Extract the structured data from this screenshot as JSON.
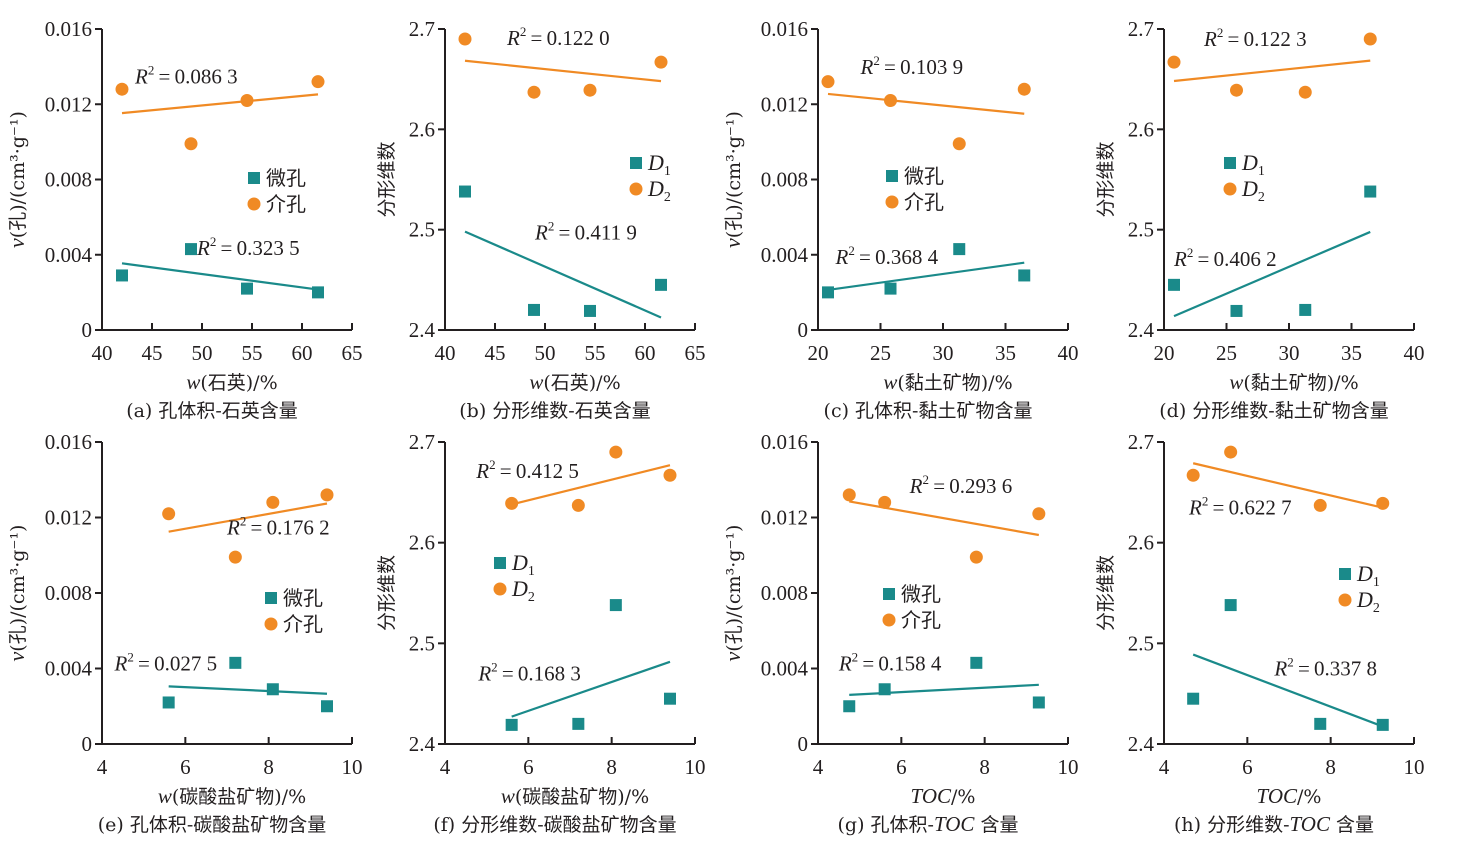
{
  "figure": {
    "colors": {
      "series1": "#1a8a8a",
      "series2": "#f08a24",
      "text": "#231f20"
    }
  },
  "chart_data": [
    {
      "id": "a",
      "type": "scatter",
      "caption": "(a) 孔体积-石英含量",
      "xlabel_var": "w",
      "xlabel_rest": "(石英)/%",
      "ylabel": "v(孔)/(cm³·g⁻¹)",
      "xlim": [
        40,
        65
      ],
      "xticks": [
        "40",
        "45",
        "50",
        "55",
        "60",
        "65"
      ],
      "xtick_values": [
        40,
        45,
        50,
        55,
        60,
        65
      ],
      "ylim": [
        0,
        0.016
      ],
      "yticks": [
        "0",
        "0.004",
        "0.008",
        "0.012",
        "0.016"
      ],
      "ytick_values": [
        0,
        0.004,
        0.008,
        0.012,
        0.016
      ],
      "legend": {
        "position": "center-right",
        "items": [
          "微孔",
          "介孔"
        ]
      },
      "series": [
        {
          "name": "微孔",
          "marker": "square",
          "x": [
            61.6,
            54.5,
            48.9,
            42.0
          ],
          "y": [
            0.002,
            0.0022,
            0.0043,
            0.0029
          ],
          "r2_label": "R²=0.323 5",
          "r2_value": "0.323 5",
          "r2_anchor": [
            49.5,
            0.004
          ]
        },
        {
          "name": "介孔",
          "marker": "circle",
          "x": [
            61.6,
            54.5,
            48.9,
            42.0
          ],
          "y": [
            0.0132,
            0.0122,
            0.0099,
            0.0128
          ],
          "r2_label": "R²=0.086 3",
          "r2_value": "0.086 3",
          "r2_anchor": [
            43.3,
            0.0131
          ]
        }
      ]
    },
    {
      "id": "b",
      "type": "scatter",
      "caption": "(b) 分形维数-石英含量",
      "xlabel_var": "w",
      "xlabel_rest": "(石英)/%",
      "ylabel": "分形维数",
      "xlim": [
        40,
        65
      ],
      "xticks": [
        "40",
        "45",
        "50",
        "55",
        "60",
        "65"
      ],
      "xtick_values": [
        40,
        45,
        50,
        55,
        60,
        65
      ],
      "ylim": [
        2.4,
        2.7
      ],
      "yticks": [
        "2.4",
        "2.5",
        "2.6",
        "2.7"
      ],
      "ytick_values": [
        2.4,
        2.5,
        2.6,
        2.7
      ],
      "legend": {
        "position": "center-right",
        "items": [
          "D1",
          "D2"
        ]
      },
      "series": [
        {
          "name": "D1",
          "marker": "square",
          "x": [
            61.6,
            54.5,
            48.9,
            42.0
          ],
          "y": [
            2.445,
            2.419,
            2.42,
            2.538
          ],
          "r2_label": "R²=0.411 9",
          "r2_value": "0.411 9",
          "r2_anchor": [
            49.0,
            2.49
          ]
        },
        {
          "name": "D2",
          "marker": "circle",
          "x": [
            61.6,
            54.5,
            48.9,
            42.0
          ],
          "y": [
            2.667,
            2.639,
            2.637,
            2.69
          ],
          "r2_label": "R²=0.122 0",
          "r2_value": "0.122 0",
          "r2_anchor": [
            46.2,
            2.684
          ]
        }
      ]
    },
    {
      "id": "c",
      "type": "scatter",
      "caption": "(c) 孔体积-黏土矿物含量",
      "xlabel_var": "w",
      "xlabel_rest": "(黏土矿物)/%",
      "ylabel": "v(孔)/(cm³·g⁻¹)",
      "xlim": [
        20,
        40
      ],
      "xticks": [
        "20",
        "25",
        "30",
        "35",
        "40"
      ],
      "xtick_values": [
        20,
        25,
        30,
        35,
        40
      ],
      "ylim": [
        0,
        0.016
      ],
      "yticks": [
        "0",
        "0.004",
        "0.008",
        "0.012",
        "0.016"
      ],
      "ytick_values": [
        0,
        0.004,
        0.008,
        0.012,
        0.016
      ],
      "legend": {
        "position": "center",
        "items": [
          "微孔",
          "介孔"
        ]
      },
      "series": [
        {
          "name": "微孔",
          "marker": "square",
          "x": [
            20.8,
            25.8,
            31.3,
            36.5
          ],
          "y": [
            0.002,
            0.0022,
            0.0043,
            0.0029
          ],
          "r2_label": "R²=0.368 4",
          "r2_value": "0.368 4",
          "r2_anchor": [
            21.4,
            0.0035
          ]
        },
        {
          "name": "介孔",
          "marker": "circle",
          "x": [
            20.8,
            25.8,
            31.3,
            36.5
          ],
          "y": [
            0.0132,
            0.0122,
            0.0099,
            0.0128
          ],
          "r2_label": "R²=0.103 9",
          "r2_value": "0.103 9",
          "r2_anchor": [
            23.4,
            0.0136
          ]
        }
      ]
    },
    {
      "id": "d",
      "type": "scatter",
      "caption": "(d) 分形维数-黏土矿物含量",
      "xlabel_var": "w",
      "xlabel_rest": "(黏土矿物)/%",
      "ylabel": "分形维数",
      "xlim": [
        20,
        40
      ],
      "xticks": [
        "20",
        "25",
        "30",
        "35",
        "40"
      ],
      "xtick_values": [
        20,
        25,
        30,
        35,
        40
      ],
      "ylim": [
        2.4,
        2.7
      ],
      "yticks": [
        "2.4",
        "2.5",
        "2.6",
        "2.7"
      ],
      "ytick_values": [
        2.4,
        2.5,
        2.6,
        2.7
      ],
      "legend": {
        "position": "center-left",
        "items": [
          "D1",
          "D2"
        ]
      },
      "series": [
        {
          "name": "D1",
          "marker": "square",
          "x": [
            20.8,
            25.8,
            31.3,
            36.5
          ],
          "y": [
            2.445,
            2.419,
            2.42,
            2.538
          ],
          "r2_label": "R²=0.406 2",
          "r2_value": "0.406 2",
          "r2_anchor": [
            20.8,
            2.464
          ]
        },
        {
          "name": "D2",
          "marker": "circle",
          "x": [
            20.8,
            25.8,
            31.3,
            36.5
          ],
          "y": [
            2.667,
            2.639,
            2.637,
            2.69
          ],
          "r2_label": "R²=0.122 3",
          "r2_value": "0.122 3",
          "r2_anchor": [
            23.2,
            2.683
          ]
        }
      ]
    },
    {
      "id": "e",
      "type": "scatter",
      "caption": "(e) 孔体积-碳酸盐矿物含量",
      "xlabel_var": "w",
      "xlabel_rest": "(碳酸盐矿物)/%",
      "ylabel": "v(孔)/(cm³·g⁻¹)",
      "xlim": [
        4,
        10
      ],
      "xticks": [
        "4",
        "6",
        "8",
        "10"
      ],
      "xtick_values": [
        4,
        6,
        8,
        10
      ],
      "ylim": [
        0,
        0.016
      ],
      "yticks": [
        "0",
        "0.004",
        "0.008",
        "0.012",
        "0.016"
      ],
      "ytick_values": [
        0,
        0.004,
        0.008,
        0.012,
        0.016
      ],
      "legend": {
        "position": "center-right",
        "items": [
          "微孔",
          "介孔"
        ]
      },
      "series": [
        {
          "name": "微孔",
          "marker": "square",
          "x": [
            9.4,
            5.6,
            7.2,
            8.1
          ],
          "y": [
            0.002,
            0.0022,
            0.0043,
            0.0029
          ],
          "r2_label": "R²=0.027 5",
          "r2_value": "0.027 5",
          "r2_anchor": [
            4.3,
            0.0039
          ]
        },
        {
          "name": "介孔",
          "marker": "circle",
          "x": [
            9.4,
            5.6,
            7.2,
            8.1
          ],
          "y": [
            0.0132,
            0.0122,
            0.0099,
            0.0128
          ],
          "r2_label": "R²=0.176 2",
          "r2_value": "0.176 2",
          "r2_anchor": [
            7.0,
            0.0111
          ]
        }
      ]
    },
    {
      "id": "f",
      "type": "scatter",
      "caption": "(f) 分形维数-碳酸盐矿物含量",
      "xlabel_var": "w",
      "xlabel_rest": "(碳酸盐矿物)/%",
      "ylabel": "分形维数",
      "xlim": [
        4,
        10
      ],
      "xticks": [
        "4",
        "6",
        "8",
        "10"
      ],
      "xtick_values": [
        4,
        6,
        8,
        10
      ],
      "ylim": [
        2.4,
        2.7
      ],
      "yticks": [
        "2.4",
        "2.5",
        "2.6",
        "2.7"
      ],
      "ytick_values": [
        2.4,
        2.5,
        2.6,
        2.7
      ],
      "legend": {
        "position": "center-left",
        "items": [
          "D1",
          "D2"
        ]
      },
      "series": [
        {
          "name": "D1",
          "marker": "square",
          "x": [
            9.4,
            5.6,
            7.2,
            8.1
          ],
          "y": [
            2.445,
            2.419,
            2.42,
            2.538
          ],
          "r2_label": "R²=0.168 3",
          "r2_value": "0.168 3",
          "r2_anchor": [
            4.8,
            2.463
          ]
        },
        {
          "name": "D2",
          "marker": "circle",
          "x": [
            9.4,
            5.6,
            7.2,
            8.1
          ],
          "y": [
            2.667,
            2.639,
            2.637,
            2.69
          ],
          "r2_label": "R²=0.412 5",
          "r2_value": "0.412 5",
          "r2_anchor": [
            4.75,
            2.664
          ]
        }
      ]
    },
    {
      "id": "g",
      "type": "scatter",
      "caption": "(g) 孔体积-TOC 含量",
      "xlabel_var": "TOC",
      "xlabel_rest": "/%",
      "ylabel": "v(孔)/(cm³·g⁻¹)",
      "xlim": [
        4,
        10
      ],
      "xticks": [
        "4",
        "6",
        "8",
        "10"
      ],
      "xtick_values": [
        4,
        6,
        8,
        10
      ],
      "ylim": [
        0,
        0.016
      ],
      "yticks": [
        "0",
        "0.004",
        "0.008",
        "0.012",
        "0.016"
      ],
      "ytick_values": [
        0,
        0.004,
        0.008,
        0.012,
        0.016
      ],
      "legend": {
        "position": "center",
        "items": [
          "微孔",
          "介孔"
        ]
      },
      "series": [
        {
          "name": "微孔",
          "marker": "square",
          "x": [
            4.75,
            9.3,
            7.8,
            5.6
          ],
          "y": [
            0.002,
            0.0022,
            0.0043,
            0.0029
          ],
          "r2_label": "R²=0.158 4",
          "r2_value": "0.158 4",
          "r2_anchor": [
            4.5,
            0.0039
          ]
        },
        {
          "name": "介孔",
          "marker": "circle",
          "x": [
            4.75,
            9.3,
            7.8,
            5.6
          ],
          "y": [
            0.0132,
            0.0122,
            0.0099,
            0.0128
          ],
          "r2_label": "R²=0.293 6",
          "r2_value": "0.293 6",
          "r2_anchor": [
            6.2,
            0.0133
          ]
        }
      ]
    },
    {
      "id": "h",
      "type": "scatter",
      "caption": "(h) 分形维数-TOC 含量",
      "xlabel_var": "TOC",
      "xlabel_rest": "/%",
      "ylabel": "分形维数",
      "xlim": [
        4,
        10
      ],
      "xticks": [
        "4",
        "6",
        "8",
        "10"
      ],
      "xtick_values": [
        4,
        6,
        8,
        10
      ],
      "ylim": [
        2.4,
        2.7
      ],
      "yticks": [
        "2.4",
        "2.5",
        "2.6",
        "2.7"
      ],
      "ytick_values": [
        2.4,
        2.5,
        2.6,
        2.7
      ],
      "legend": {
        "position": "center-right",
        "items": [
          "D1",
          "D2"
        ]
      },
      "series": [
        {
          "name": "D1",
          "marker": "square",
          "x": [
            4.7,
            9.25,
            7.75,
            5.6
          ],
          "y": [
            2.445,
            2.419,
            2.42,
            2.538
          ],
          "r2_label": "R²=0.337 8",
          "r2_value": "0.337 8",
          "r2_anchor": [
            6.65,
            2.468
          ]
        },
        {
          "name": "D2",
          "marker": "circle",
          "x": [
            4.7,
            9.25,
            7.75,
            5.6
          ],
          "y": [
            2.667,
            2.639,
            2.637,
            2.69
          ],
          "r2_label": "R²=0.622 7",
          "r2_value": "0.622 7",
          "r2_anchor": [
            4.6,
            2.628
          ]
        }
      ]
    }
  ]
}
